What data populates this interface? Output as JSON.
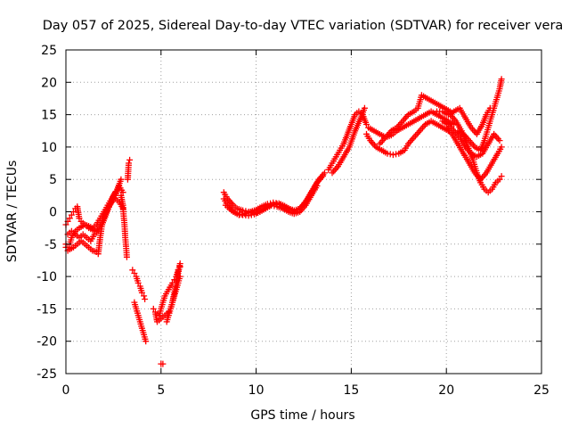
{
  "chart_data": {
    "type": "scatter",
    "title": "Day 057 of 2025, Sidereal Day-to-day VTEC variation (SDTVAR) for receiver vera",
    "xlabel": "GPS time / hours",
    "ylabel": "SDTVAR / TECUs",
    "xlim": [
      0,
      25
    ],
    "ylim": [
      -25,
      25
    ],
    "xticks": [
      "0",
      "5",
      "10",
      "15",
      "20",
      "25"
    ],
    "yticks": [
      "25",
      "20",
      "15",
      "10",
      "5",
      "0",
      "-5",
      "-10",
      "-15",
      "-20",
      "-25"
    ],
    "grid": true,
    "marker": "plus",
    "color": "#ff0000",
    "series": [
      {
        "x": [
          0.0,
          0.1,
          0.2,
          0.3,
          0.4,
          0.5,
          0.6,
          0.7,
          0.8,
          1.0,
          1.2,
          1.4,
          1.6,
          1.8,
          2.0,
          2.2,
          2.4,
          2.6,
          2.8,
          3.0
        ],
        "y": [
          -2.0,
          -1.5,
          -1.0,
          -0.5,
          0.0,
          0.5,
          0.8,
          -1.0,
          -1.5,
          -2.0,
          -2.5,
          -2.8,
          -3.0,
          -2.0,
          -1.0,
          0.5,
          1.5,
          2.5,
          4.0,
          3.0
        ]
      },
      {
        "x": [
          0.0,
          0.1,
          0.2,
          0.3,
          0.5,
          0.7,
          1.0,
          1.2,
          1.4,
          1.6,
          1.8,
          2.0,
          2.2,
          2.4,
          2.6
        ],
        "y": [
          -5.0,
          -5.5,
          -5.0,
          -4.0,
          -3.0,
          -2.5,
          -2.0,
          -2.2,
          -2.5,
          -2.0,
          -1.0,
          0.0,
          1.0,
          2.0,
          3.0
        ]
      },
      {
        "x": [
          0.0,
          0.1,
          0.2,
          0.4,
          0.6,
          0.8,
          1.0,
          1.2,
          1.4,
          1.6,
          1.7,
          1.8,
          1.9,
          2.0,
          2.2,
          2.4,
          2.6,
          2.8,
          3.0
        ],
        "y": [
          -5.5,
          -6.0,
          -5.8,
          -5.5,
          -5.0,
          -4.5,
          -5.0,
          -5.5,
          -6.0,
          -6.2,
          -6.5,
          -4.0,
          -2.0,
          -1.0,
          0.5,
          1.5,
          2.0,
          1.5,
          0.5
        ]
      },
      {
        "x": [
          0.1,
          0.3,
          0.5,
          0.7,
          0.9,
          1.1,
          1.3,
          1.5,
          1.7,
          1.9,
          2.1,
          2.3,
          2.5,
          2.7,
          2.9
        ],
        "y": [
          -3.5,
          -3.0,
          -3.5,
          -4.0,
          -3.5,
          -4.0,
          -4.5,
          -3.5,
          -3.0,
          -2.0,
          -0.5,
          1.0,
          2.5,
          3.5,
          5.0
        ]
      },
      {
        "x": [
          2.9,
          3.0,
          3.02,
          3.05,
          3.08,
          3.1,
          3.12,
          3.15,
          3.18,
          3.2,
          3.25,
          3.3,
          3.35
        ],
        "y": [
          2.5,
          1.0,
          0.0,
          -1.0,
          -2.0,
          -3.0,
          -4.0,
          -5.0,
          -6.0,
          -7.0,
          5.0,
          7.5,
          8.0
        ]
      },
      {
        "x": [
          3.5,
          3.6,
          3.7,
          3.8,
          3.9,
          4.0,
          4.1,
          4.15
        ],
        "y": [
          -9.0,
          -9.5,
          -10.0,
          -11.0,
          -11.5,
          -12.5,
          -13.0,
          -13.5
        ]
      },
      {
        "x": [
          3.6,
          3.7,
          3.8,
          3.9,
          4.0,
          4.1,
          4.2
        ],
        "y": [
          -14.0,
          -15.0,
          -16.0,
          -17.0,
          -18.0,
          -19.0,
          -20.0
        ]
      },
      {
        "x": [
          4.6,
          4.7,
          4.8,
          5.0,
          5.2,
          5.4,
          5.5,
          5.6,
          5.7,
          5.8,
          5.9,
          6.0
        ],
        "y": [
          -15.0,
          -15.5,
          -17.0,
          -16.5,
          -16.0,
          -15.5,
          -15.0,
          -14.0,
          -12.5,
          -11.0,
          -9.5,
          -8.0
        ]
      },
      {
        "x": [
          4.9,
          5.0,
          5.2,
          5.4,
          5.6,
          5.7,
          5.8,
          5.9,
          6.0
        ],
        "y": [
          -16.0,
          -15.0,
          -13.0,
          -12.0,
          -11.0,
          -10.5,
          -10.0,
          -9.0,
          -8.5
        ]
      },
      {
        "x": [
          5.3,
          5.4,
          5.5,
          5.6,
          5.7,
          5.8,
          5.9,
          6.0
        ],
        "y": [
          -17.0,
          -16.0,
          -15.0,
          -14.0,
          -13.0,
          -12.0,
          -11.0,
          -10.0
        ]
      },
      {
        "x": [
          5.0,
          5.1
        ],
        "y": [
          -23.5,
          -23.5
        ]
      },
      {
        "x": [
          8.3,
          8.5,
          8.8,
          9.0,
          9.3,
          9.6,
          9.9,
          10.2,
          10.5,
          10.8,
          11.1,
          11.4,
          11.7,
          12.0,
          12.3,
          12.6,
          12.9,
          13.2,
          13.5
        ],
        "y": [
          3.0,
          2.0,
          1.0,
          0.5,
          0.2,
          0.0,
          -0.2,
          0.0,
          0.5,
          1.0,
          1.2,
          1.0,
          0.5,
          0.2,
          0.5,
          1.5,
          3.0,
          4.5,
          5.5
        ]
      },
      {
        "x": [
          8.3,
          8.5,
          8.8,
          9.1,
          9.4,
          9.7,
          10.0,
          10.3,
          10.6,
          10.9,
          11.2,
          11.5,
          11.8,
          12.1,
          12.4,
          12.7,
          13.0,
          13.3,
          13.6
        ],
        "y": [
          2.0,
          1.0,
          0.0,
          -0.5,
          -0.3,
          0.0,
          0.3,
          0.8,
          1.2,
          1.4,
          1.3,
          0.9,
          0.4,
          0.0,
          0.8,
          2.0,
          3.5,
          5.0,
          6.0
        ]
      },
      {
        "x": [
          8.4,
          8.7,
          9.0,
          9.3,
          9.6,
          9.9,
          10.2,
          10.5,
          10.8,
          11.1,
          11.4,
          11.7,
          12.0,
          12.3,
          12.6,
          12.9,
          13.2
        ],
        "y": [
          1.0,
          0.2,
          -0.3,
          -0.5,
          -0.6,
          -0.4,
          0.0,
          0.6,
          1.0,
          0.8,
          0.5,
          0.0,
          -0.3,
          0.0,
          1.0,
          2.5,
          4.0
        ]
      },
      {
        "x": [
          13.8,
          14.0,
          14.2,
          14.4,
          14.6,
          14.8,
          15.0,
          15.2,
          15.4,
          15.6,
          15.8
        ],
        "y": [
          6.5,
          7.5,
          8.5,
          9.5,
          10.5,
          12.0,
          13.5,
          15.0,
          15.5,
          15.0,
          13.5
        ]
      },
      {
        "x": [
          14.0,
          14.3,
          14.6,
          14.9,
          15.2,
          15.5,
          15.7
        ],
        "y": [
          6.0,
          7.0,
          8.5,
          10.0,
          12.5,
          14.5,
          16.0
        ]
      },
      {
        "x": [
          15.8,
          16.0,
          16.3,
          16.6,
          16.9,
          17.2,
          17.5,
          17.8,
          18.0,
          18.3,
          18.6,
          18.9,
          19.2,
          19.5,
          19.8,
          20.1
        ],
        "y": [
          12.0,
          11.0,
          10.0,
          9.5,
          9.0,
          8.8,
          9.0,
          9.5,
          10.5,
          11.5,
          12.5,
          13.5,
          14.0,
          13.5,
          13.0,
          12.5
        ]
      },
      {
        "x": [
          15.9,
          16.2,
          16.5,
          16.8,
          17.1,
          17.4,
          17.7,
          18.0,
          18.3,
          18.6,
          18.9,
          19.2,
          19.5,
          19.8,
          20.1,
          20.4
        ],
        "y": [
          13.0,
          12.5,
          12.0,
          11.5,
          11.8,
          12.5,
          13.0,
          13.5,
          14.0,
          14.5,
          15.0,
          15.5,
          15.0,
          14.5,
          14.0,
          13.5
        ]
      },
      {
        "x": [
          16.5,
          16.8,
          17.1,
          17.4,
          17.7,
          18.0,
          18.3,
          18.5,
          18.7,
          19.0,
          19.3,
          19.6,
          19.9,
          20.2
        ],
        "y": [
          10.5,
          11.5,
          12.5,
          13.0,
          14.0,
          15.0,
          15.5,
          16.0,
          18.0,
          17.5,
          17.0,
          16.5,
          16.0,
          15.5
        ]
      },
      {
        "x": [
          20.2,
          20.5,
          20.8,
          21.0,
          21.2,
          21.4,
          21.6,
          21.8,
          22.0,
          22.2,
          22.4,
          22.6,
          22.8,
          22.9
        ],
        "y": [
          15.0,
          14.0,
          12.5,
          11.0,
          9.5,
          8.0,
          6.0,
          4.5,
          3.5,
          3.0,
          3.5,
          4.5,
          5.0,
          5.5
        ]
      },
      {
        "x": [
          20.0,
          20.3,
          20.6,
          20.9,
          21.2,
          21.5,
          21.8,
          22.1,
          22.4,
          22.7,
          22.9
        ],
        "y": [
          13.0,
          12.0,
          10.5,
          9.0,
          7.5,
          6.0,
          5.0,
          6.0,
          7.5,
          9.0,
          10.0
        ]
      },
      {
        "x": [
          19.8,
          20.1,
          20.4,
          20.7,
          21.0,
          21.3,
          21.6,
          21.9,
          22.2,
          22.5,
          22.8
        ],
        "y": [
          14.0,
          13.5,
          12.5,
          11.5,
          10.0,
          9.0,
          8.5,
          9.0,
          10.5,
          12.0,
          11.0
        ]
      },
      {
        "x": [
          20.6,
          20.9,
          21.2,
          21.5,
          21.8,
          22.0,
          22.2,
          22.4,
          22.6,
          22.8,
          22.9
        ],
        "y": [
          12.5,
          12.0,
          11.0,
          10.0,
          9.5,
          11.0,
          13.0,
          15.0,
          17.0,
          19.0,
          20.5
        ]
      },
      {
        "x": [
          19.5,
          19.8,
          20.1,
          20.4,
          20.7,
          21.0,
          21.3,
          21.6,
          21.9,
          22.1,
          22.3
        ],
        "y": [
          15.5,
          15.5,
          15.0,
          15.5,
          16.0,
          14.5,
          13.0,
          12.0,
          13.5,
          15.0,
          16.0
        ]
      }
    ]
  }
}
